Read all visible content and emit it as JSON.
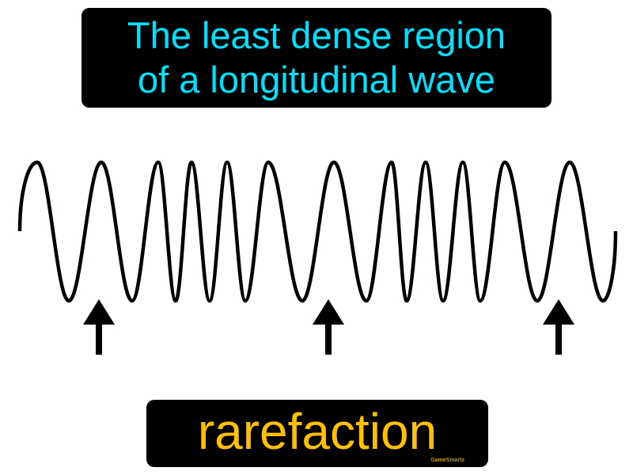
{
  "definition": {
    "line1": "The least dense region",
    "line2": "of a longitudinal wave",
    "color": "#00e1ff"
  },
  "term": {
    "label": "rarefaction",
    "color": "#ffc000"
  },
  "watermark": "GameSmartz",
  "diagram": {
    "wave_color": "#000000",
    "arrow_count": 3,
    "arrow_icon": "arrow-up-icon"
  }
}
